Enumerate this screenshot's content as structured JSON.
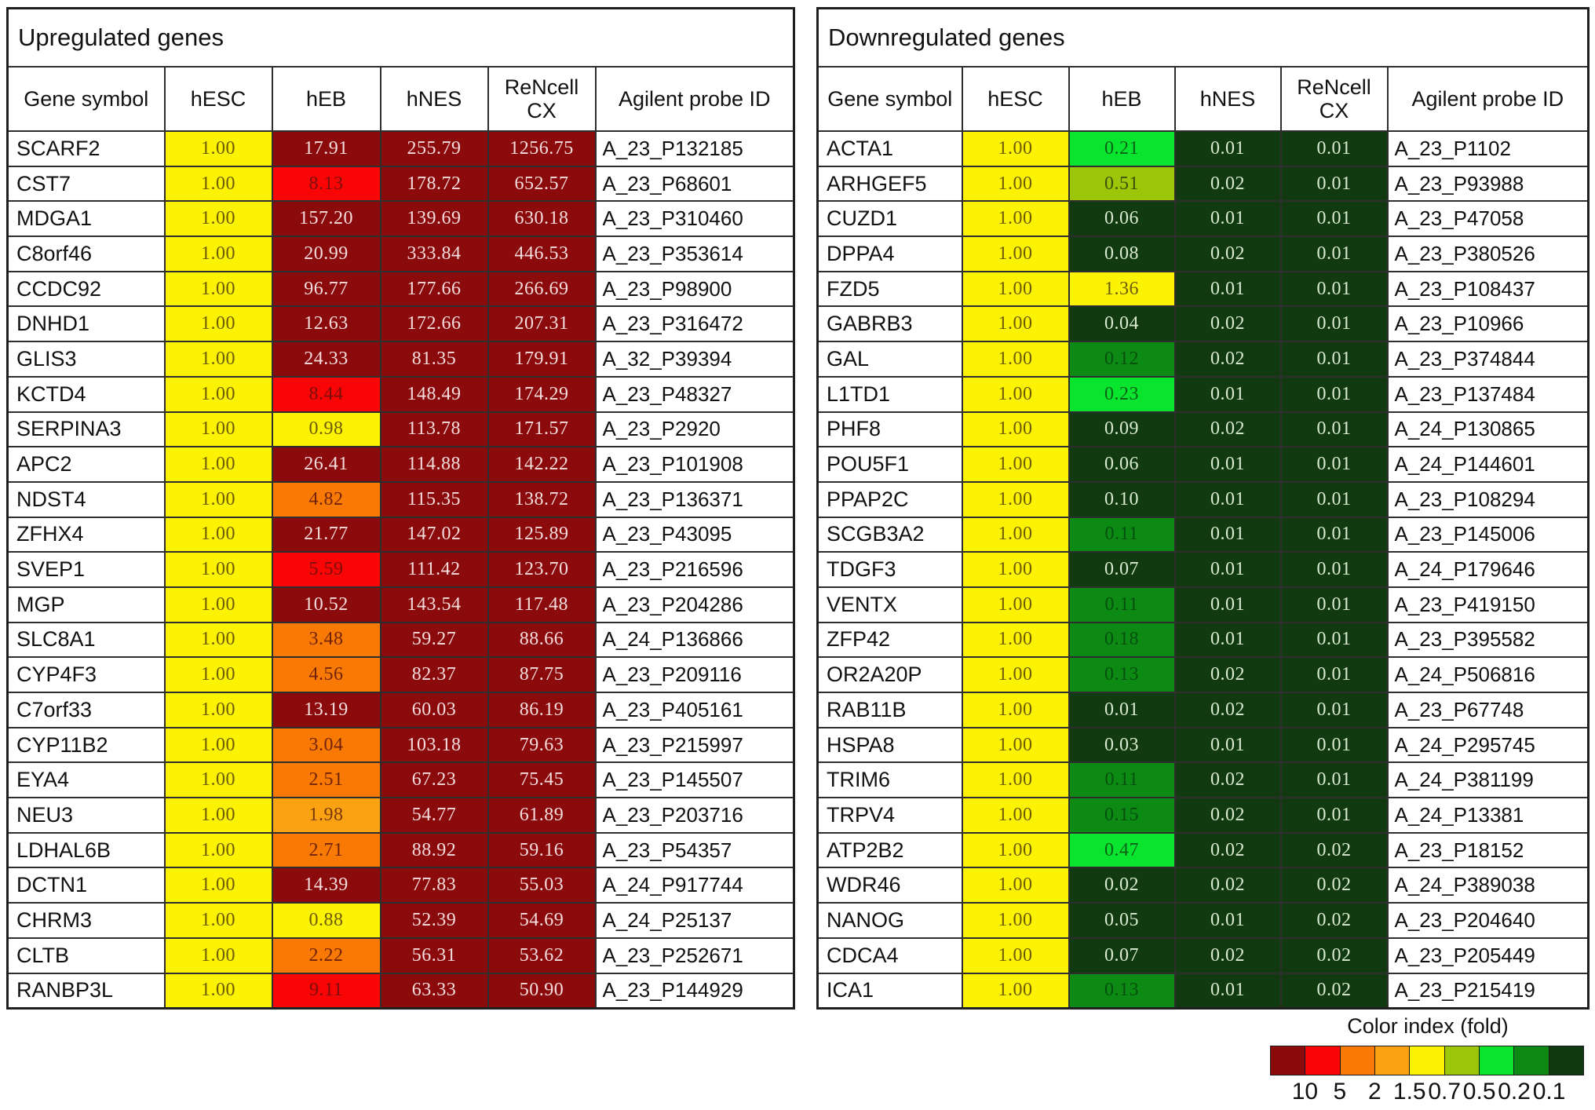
{
  "figure": {
    "background": "#ffffff",
    "grid_color": "#2e2e2e"
  },
  "chart_data": {
    "type": "heatmap",
    "description_columns_shared": [
      "Gene symbol",
      "hESC",
      "hEB",
      "hNES",
      "ReNcell CX",
      "Agilent probe ID"
    ],
    "tables": [
      {
        "title": "Upregulated genes",
        "columns": [
          "Gene symbol",
          "hESC",
          "hEB",
          "hNES",
          "ReNcell CX",
          "Agilent probe ID"
        ],
        "rows": [
          [
            "SCARF2",
            "1.00",
            "17.91",
            "255.79",
            "1256.75",
            "A_23_P132185"
          ],
          [
            "CST7",
            "1.00",
            "8.13",
            "178.72",
            "652.57",
            "A_23_P68601"
          ],
          [
            "MDGA1",
            "1.00",
            "157.20",
            "139.69",
            "630.18",
            "A_23_P310460"
          ],
          [
            "C8orf46",
            "1.00",
            "20.99",
            "333.84",
            "446.53",
            "A_23_P353614"
          ],
          [
            "CCDC92",
            "1.00",
            "96.77",
            "177.66",
            "266.69",
            "A_23_P98900"
          ],
          [
            "DNHD1",
            "1.00",
            "12.63",
            "172.66",
            "207.31",
            "A_23_P316472"
          ],
          [
            "GLIS3",
            "1.00",
            "24.33",
            "81.35",
            "179.91",
            "A_32_P39394"
          ],
          [
            "KCTD4",
            "1.00",
            "8.44",
            "148.49",
            "174.29",
            "A_23_P48327"
          ],
          [
            "SERPINA3",
            "1.00",
            "0.98",
            "113.78",
            "171.57",
            "A_23_P2920"
          ],
          [
            "APC2",
            "1.00",
            "26.41",
            "114.88",
            "142.22",
            "A_23_P101908"
          ],
          [
            "NDST4",
            "1.00",
            "4.82",
            "115.35",
            "138.72",
            "A_23_P136371"
          ],
          [
            "ZFHX4",
            "1.00",
            "21.77",
            "147.02",
            "125.89",
            "A_23_P43095"
          ],
          [
            "SVEP1",
            "1.00",
            "5.59",
            "111.42",
            "123.70",
            "A_23_P216596"
          ],
          [
            "MGP",
            "1.00",
            "10.52",
            "143.54",
            "117.48",
            "A_23_P204286"
          ],
          [
            "SLC8A1",
            "1.00",
            "3.48",
            "59.27",
            "88.66",
            "A_24_P136866"
          ],
          [
            "CYP4F3",
            "1.00",
            "4.56",
            "82.37",
            "87.75",
            "A_23_P209116"
          ],
          [
            "C7orf33",
            "1.00",
            "13.19",
            "60.03",
            "86.19",
            "A_23_P405161"
          ],
          [
            "CYP11B2",
            "1.00",
            "3.04",
            "103.18",
            "79.63",
            "A_23_P215997"
          ],
          [
            "EYA4",
            "1.00",
            "2.51",
            "67.23",
            "75.45",
            "A_23_P145507"
          ],
          [
            "NEU3",
            "1.00",
            "1.98",
            "54.77",
            "61.89",
            "A_23_P203716"
          ],
          [
            "LDHAL6B",
            "1.00",
            "2.71",
            "88.92",
            "59.16",
            "A_23_P54357"
          ],
          [
            "DCTN1",
            "1.00",
            "14.39",
            "77.83",
            "55.03",
            "A_24_P917744"
          ],
          [
            "CHRM3",
            "1.00",
            "0.88",
            "52.39",
            "54.69",
            "A_24_P25137"
          ],
          [
            "CLTB",
            "1.00",
            "2.22",
            "56.31",
            "53.62",
            "A_23_P252671"
          ],
          [
            "RANBP3L",
            "1.00",
            "9.11",
            "63.33",
            "50.90",
            "A_23_P144929"
          ]
        ]
      },
      {
        "title": "Downregulated genes",
        "columns": [
          "Gene symbol",
          "hESC",
          "hEB",
          "hNES",
          "ReNcell CX",
          "Agilent probe ID"
        ],
        "rows": [
          [
            "ACTA1",
            "1.00",
            "0.21",
            "0.01",
            "0.01",
            "A_23_P1102"
          ],
          [
            "ARHGEF5",
            "1.00",
            "0.51",
            "0.02",
            "0.01",
            "A_23_P93988"
          ],
          [
            "CUZD1",
            "1.00",
            "0.06",
            "0.01",
            "0.01",
            "A_23_P47058"
          ],
          [
            "DPPA4",
            "1.00",
            "0.08",
            "0.02",
            "0.01",
            "A_23_P380526"
          ],
          [
            "FZD5",
            "1.00",
            "1.36",
            "0.01",
            "0.01",
            "A_23_P108437"
          ],
          [
            "GABRB3",
            "1.00",
            "0.04",
            "0.02",
            "0.01",
            "A_23_P10966"
          ],
          [
            "GAL",
            "1.00",
            "0.12",
            "0.02",
            "0.01",
            "A_23_P374844"
          ],
          [
            "L1TD1",
            "1.00",
            "0.23",
            "0.01",
            "0.01",
            "A_23_P137484"
          ],
          [
            "PHF8",
            "1.00",
            "0.09",
            "0.02",
            "0.01",
            "A_24_P130865"
          ],
          [
            "POU5F1",
            "1.00",
            "0.06",
            "0.01",
            "0.01",
            "A_24_P144601"
          ],
          [
            "PPAP2C",
            "1.00",
            "0.10",
            "0.01",
            "0.01",
            "A_23_P108294"
          ],
          [
            "SCGB3A2",
            "1.00",
            "0.11",
            "0.01",
            "0.01",
            "A_23_P145006"
          ],
          [
            "TDGF3",
            "1.00",
            "0.07",
            "0.01",
            "0.01",
            "A_24_P179646"
          ],
          [
            "VENTX",
            "1.00",
            "0.11",
            "0.01",
            "0.01",
            "A_23_P419150"
          ],
          [
            "ZFP42",
            "1.00",
            "0.18",
            "0.01",
            "0.01",
            "A_23_P395582"
          ],
          [
            "OR2A20P",
            "1.00",
            "0.13",
            "0.02",
            "0.01",
            "A_24_P506816"
          ],
          [
            "RAB11B",
            "1.00",
            "0.01",
            "0.02",
            "0.01",
            "A_23_P67748"
          ],
          [
            "HSPA8",
            "1.00",
            "0.03",
            "0.01",
            "0.01",
            "A_24_P295745"
          ],
          [
            "TRIM6",
            "1.00",
            "0.11",
            "0.02",
            "0.01",
            "A_24_P381199"
          ],
          [
            "TRPV4",
            "1.00",
            "0.15",
            "0.02",
            "0.01",
            "A_24_P13381"
          ],
          [
            "ATP2B2",
            "1.00",
            "0.47",
            "0.02",
            "0.02",
            "A_23_P18152"
          ],
          [
            "WDR46",
            "1.00",
            "0.02",
            "0.02",
            "0.02",
            "A_24_P389038"
          ],
          [
            "NANOG",
            "1.00",
            "0.05",
            "0.01",
            "0.02",
            "A_23_P204640"
          ],
          [
            "CDCA4",
            "1.00",
            "0.07",
            "0.02",
            "0.02",
            "A_23_P205449"
          ],
          [
            "ICA1",
            "1.00",
            "0.13",
            "0.01",
            "0.02",
            "A_23_P215419"
          ]
        ]
      }
    ],
    "legend": {
      "title": "Color index (fold)",
      "tick_labels": [
        "10",
        "5",
        "2",
        "1.5",
        "0.7",
        "0.5",
        "0.2",
        "0.1"
      ],
      "tick_values": [
        10,
        5,
        2,
        1.5,
        0.7,
        0.5,
        0.2,
        0.1
      ],
      "swatch_colors": [
        "#8B0B0D",
        "#F90505",
        "#F87A05",
        "#FAA212",
        "#FBF303",
        "#9BC708",
        "#09E42E",
        "#0C8A14",
        "#123A10"
      ],
      "text_colors": [
        "#F4DCDC",
        "#7E0D0D",
        "#74230B",
        "#7A3A08",
        "#6E5B06",
        "#414F0A",
        "#0A6316",
        "#06500E",
        "#D8EAD0"
      ]
    }
  }
}
